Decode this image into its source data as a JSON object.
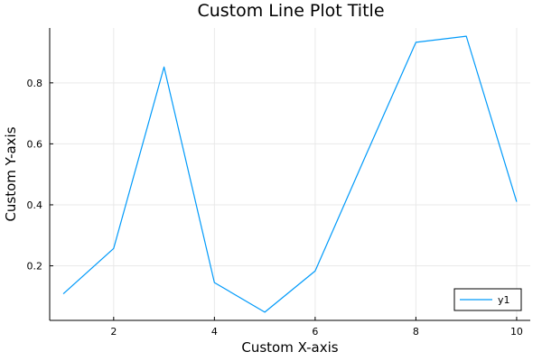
{
  "chart_data": {
    "type": "line",
    "title": "Custom Line Plot Title",
    "xlabel": "Custom X-axis",
    "ylabel": "Custom Y-axis",
    "x": [
      1,
      2,
      3,
      4,
      5,
      6,
      7,
      8,
      9,
      10
    ],
    "series": [
      {
        "name": "y1",
        "color": "#009AFA",
        "values": [
          0.108,
          0.257,
          0.852,
          0.145,
          0.048,
          0.183,
          0.56,
          0.933,
          0.953,
          0.41
        ]
      }
    ],
    "xticks": [
      2,
      4,
      6,
      8,
      10
    ],
    "yticks": [
      0.2,
      0.4,
      0.6,
      0.8
    ],
    "xlim": [
      0.73,
      10.27
    ],
    "ylim": [
      0.021,
      0.98
    ],
    "grid": true,
    "legend_position": "bottom-right"
  }
}
